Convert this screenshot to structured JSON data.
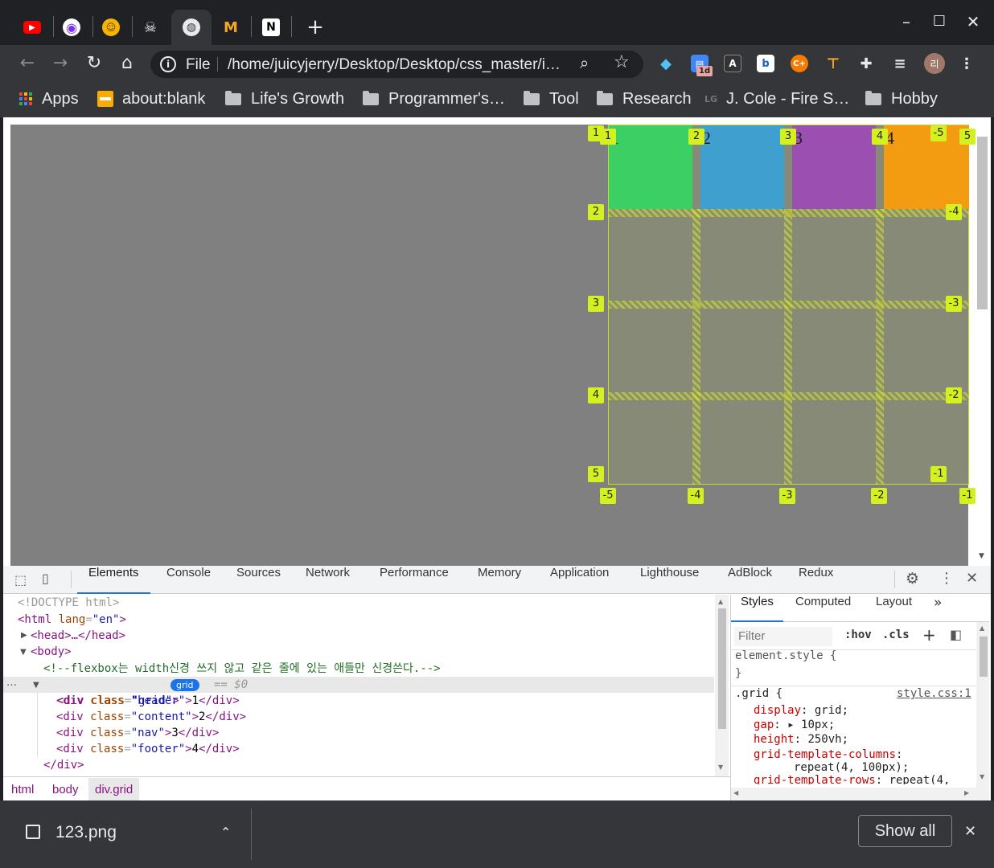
{
  "window": {
    "minimize": "–",
    "maximize": "☐",
    "close": "✕"
  },
  "tabs": [
    {
      "icon": "youtube-icon",
      "glyph": "▶",
      "color": "#ff0000"
    },
    {
      "icon": "circle-app-icon",
      "glyph": "◉",
      "color": "#7b2ff7"
    },
    {
      "icon": "cowboy-emoji-icon",
      "glyph": "🤠",
      "color": "#f4b400"
    },
    {
      "icon": "skull-icon",
      "glyph": "💀",
      "color": "#e8eaed"
    },
    {
      "icon": "globe-icon",
      "glyph": "🌐",
      "color": "#e8eaed"
    },
    {
      "icon": "mcdonalds-icon",
      "glyph": "M",
      "color": "#f5a623"
    },
    {
      "icon": "notion-icon",
      "glyph": "N",
      "color": "#ffffff"
    }
  ],
  "toolbar": {
    "back": "←",
    "forward": "→",
    "reload": "↻",
    "home": "⌂",
    "omnibox": {
      "scheme": "File",
      "url": "/home/juicyjerry/Desktop/Desktop/css_master/i…"
    },
    "extension_badge": "1d",
    "profile_initial": "리"
  },
  "bookmarks": [
    {
      "label": "Apps",
      "kind": "apps"
    },
    {
      "label": "about:blank",
      "kind": "page"
    },
    {
      "label": "Life's Growth",
      "kind": "folder"
    },
    {
      "label": "Programmer's…",
      "kind": "folder"
    },
    {
      "label": "Tool",
      "kind": "folder"
    },
    {
      "label": "Research",
      "kind": "folder"
    },
    {
      "label": "J. Cole - Fire S…",
      "kind": "lg"
    },
    {
      "label": "Hobby",
      "kind": "folder"
    }
  ],
  "grid_overlay": {
    "cells": [
      {
        "text": "1",
        "color": "#3ccf64"
      },
      {
        "text": "2",
        "color": "#3f9fcf"
      },
      {
        "text": "3",
        "color": "#9b4fb0"
      },
      {
        "text": "4",
        "color": "#f39c12"
      }
    ],
    "top_col_labels": [
      "1",
      "2",
      "3",
      "4",
      "-5",
      "5"
    ],
    "bottom_col_labels": [
      "-5",
      "-4",
      "-3",
      "-2",
      "-1"
    ],
    "left_row_labels": [
      "1",
      "2",
      "3",
      "4",
      "5"
    ],
    "right_row_labels": [
      "-4",
      "-3",
      "-2",
      "-1"
    ],
    "accent": "#d4f01e"
  },
  "devtools": {
    "tabs": [
      "Elements",
      "Console",
      "Sources",
      "Network",
      "Performance",
      "Memory",
      "Application",
      "Lighthouse",
      "AdBlock",
      "Redux"
    ],
    "active_tab": "Elements",
    "dom": {
      "doctype": "<!DOCTYPE html>",
      "html_open_tag": "<html",
      "html_attr": "lang",
      "html_attr_val": "\"en\"",
      "head": "<head>…</head>",
      "body": "<body>",
      "comment": "<!--flexbox는 width신경 쓰지 않고 같은 줄에 있는 애들만 신경쓴다.-->",
      "selected_div": "<div class=\"grid\">",
      "grid_badge": "grid",
      "selected_marker": "== $0",
      "children": [
        {
          "cls": "\"header\"",
          "text": "1"
        },
        {
          "cls": "\"content\"",
          "text": "2"
        },
        {
          "cls": "\"nav\"",
          "text": "3"
        },
        {
          "cls": "\"footer\"",
          "text": "4"
        }
      ],
      "close_div": "</div>"
    },
    "breadcrumb": [
      "html",
      "body",
      "div.grid"
    ],
    "styles": {
      "tabs": [
        "Styles",
        "Computed",
        "Layout",
        "»"
      ],
      "filter_placeholder": "Filter",
      "hov": ":hov",
      "cls": ".cls",
      "element_style": "element.style {",
      "close_brace": "}",
      "selector": ".grid {",
      "source": "style.css:1",
      "props": [
        {
          "name": "display",
          "value": "grid;"
        },
        {
          "name": "gap",
          "value": "▸ 10px;"
        },
        {
          "name": "height",
          "value": "250vh;"
        },
        {
          "name": "grid-template-columns",
          "value": ""
        },
        {
          "name": "",
          "value": "repeat(4, 100px);"
        },
        {
          "name": "grid-template-rows",
          "value": "repeat(4,"
        }
      ]
    }
  },
  "download": {
    "filename": "123.png",
    "show_all": "Show all",
    "close": "✕"
  }
}
